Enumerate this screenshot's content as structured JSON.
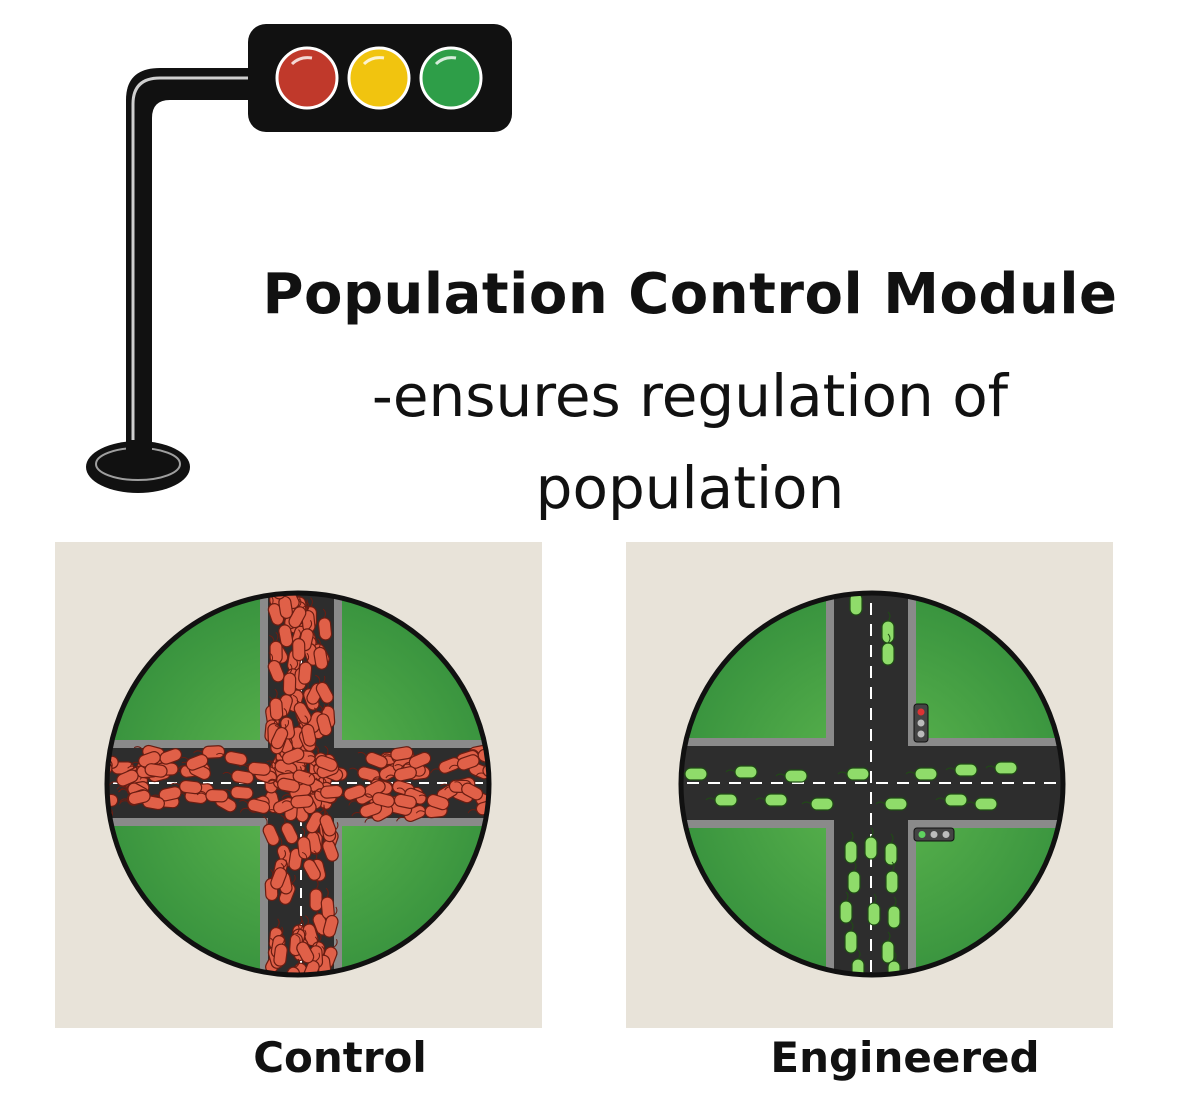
{
  "heading": {
    "title": "Population Control Module",
    "subtitle_line1": "-ensures regulation of",
    "subtitle_line2": "population"
  },
  "panels": [
    {
      "caption": "Control",
      "bacteria_color": "#e06048",
      "bacteria_state": "overcrowded"
    },
    {
      "caption": "Engineered",
      "bacteria_color": "#8fdc6a",
      "bacteria_state": "regulated"
    }
  ],
  "traffic_light": {
    "lamps": [
      "#c0392b",
      "#f1c40f",
      "#2e9e48"
    ]
  },
  "colors": {
    "grass": "#3f9a3f",
    "road": "#2d2d2d",
    "background_panel": "#e8e3d9"
  }
}
